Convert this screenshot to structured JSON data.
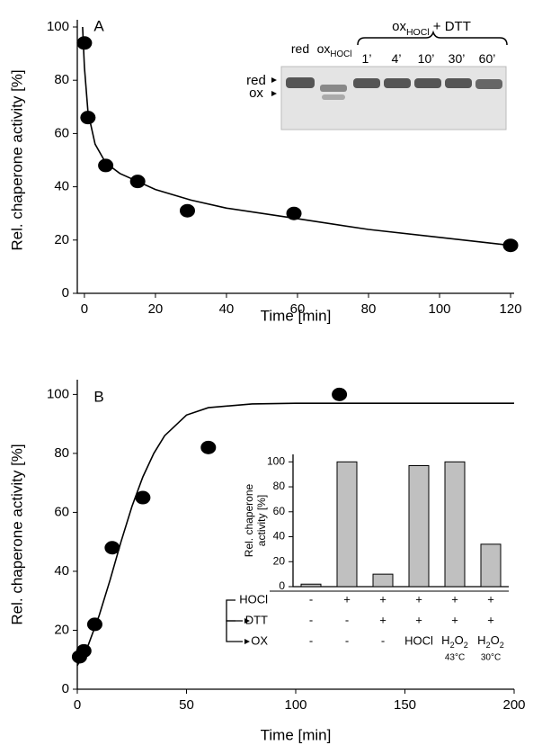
{
  "chart_data": [
    {
      "type": "scatter",
      "panel_label": "A",
      "xlabel": "Time [min]",
      "ylabel": "Rel. chaperone activity [%]",
      "xlim": [
        -2,
        121
      ],
      "ylim": [
        0,
        100
      ],
      "xticks": [
        0,
        20,
        40,
        60,
        80,
        100,
        120
      ],
      "yticks": [
        0,
        20,
        40,
        60,
        80,
        100
      ],
      "color": "#000000",
      "series": [
        {
          "x": [
            0,
            1,
            6,
            15,
            29,
            59,
            120
          ],
          "values": [
            94,
            66,
            48,
            42,
            31,
            30,
            18
          ]
        }
      ],
      "fit": {
        "x": [
          -0.5,
          0,
          1,
          3,
          6,
          10,
          15,
          20,
          30,
          40,
          60,
          80,
          100,
          120
        ],
        "values": [
          100,
          85,
          68,
          56,
          49,
          45,
          42,
          39,
          35,
          32,
          28,
          24,
          21,
          18
        ]
      },
      "inset": {
        "band_labels": [
          "red",
          "ox"
        ],
        "lane_labels": [
          [
            {
              "text": "red"
            }
          ],
          [
            {
              "text": "ox"
            },
            {
              "text": "HOCl",
              "sub": true
            }
          ],
          [
            {
              "text": "1’"
            }
          ],
          [
            {
              "text": "4’"
            }
          ],
          [
            {
              "text": "10’"
            }
          ],
          [
            {
              "text": "30’"
            }
          ],
          [
            {
              "text": "60’"
            }
          ]
        ],
        "group_label": [
          {
            "text": "ox"
          },
          {
            "text": "HOCl",
            "sub": true
          },
          {
            "text": " + DTT"
          }
        ]
      }
    },
    {
      "type": "scatter",
      "panel_label": "B",
      "xlabel": "Time [min]",
      "ylabel": "Rel. chaperone activity [%]",
      "xlim": [
        0,
        200
      ],
      "ylim": [
        0,
        105
      ],
      "xticks": [
        0,
        50,
        100,
        150,
        200
      ],
      "yticks": [
        0,
        20,
        40,
        60,
        80,
        100
      ],
      "color": "#000000",
      "series": [
        {
          "x": [
            1,
            3,
            8,
            16,
            30,
            60,
            120
          ],
          "values": [
            11,
            13,
            22,
            48,
            65,
            82,
            100
          ]
        }
      ],
      "fit": {
        "x": [
          0,
          5,
          10,
          15,
          20,
          25,
          30,
          35,
          40,
          50,
          60,
          80,
          100,
          200
        ],
        "values": [
          8,
          15,
          25,
          37,
          50,
          62,
          72,
          80,
          86,
          93,
          95.5,
          96.8,
          97,
          97
        ]
      }
    },
    {
      "type": "bar",
      "ylabel": [
        "Rel. chaperone",
        "activity [%]"
      ],
      "ylim": [
        0,
        106
      ],
      "yticks": [
        0,
        20,
        40,
        60,
        80,
        100
      ],
      "color": "#c0c0c0",
      "values": [
        2,
        100,
        10,
        97,
        100,
        34
      ],
      "conditions": [
        {
          "name": "HOCl",
          "values": [
            "-",
            "+",
            "+",
            "+",
            "+",
            "+"
          ]
        },
        {
          "name": "DTT",
          "values": [
            "-",
            "-",
            "+",
            "+",
            "+",
            "+"
          ]
        },
        {
          "name": "OX",
          "values": [
            "-",
            "-",
            "-",
            "HOCl",
            {
              "parts": [
                {
                  "text": "H"
                },
                {
                  "text": "2",
                  "sub": true
                },
                {
                  "text": "O"
                },
                {
                  "text": "2",
                  "sub": true
                }
              ],
              "note": "43°C"
            },
            {
              "parts": [
                {
                  "text": "H"
                },
                {
                  "text": "2",
                  "sub": true
                },
                {
                  "text": "O"
                },
                {
                  "text": "2",
                  "sub": true
                }
              ],
              "note": "30°C"
            }
          ]
        }
      ]
    }
  ]
}
